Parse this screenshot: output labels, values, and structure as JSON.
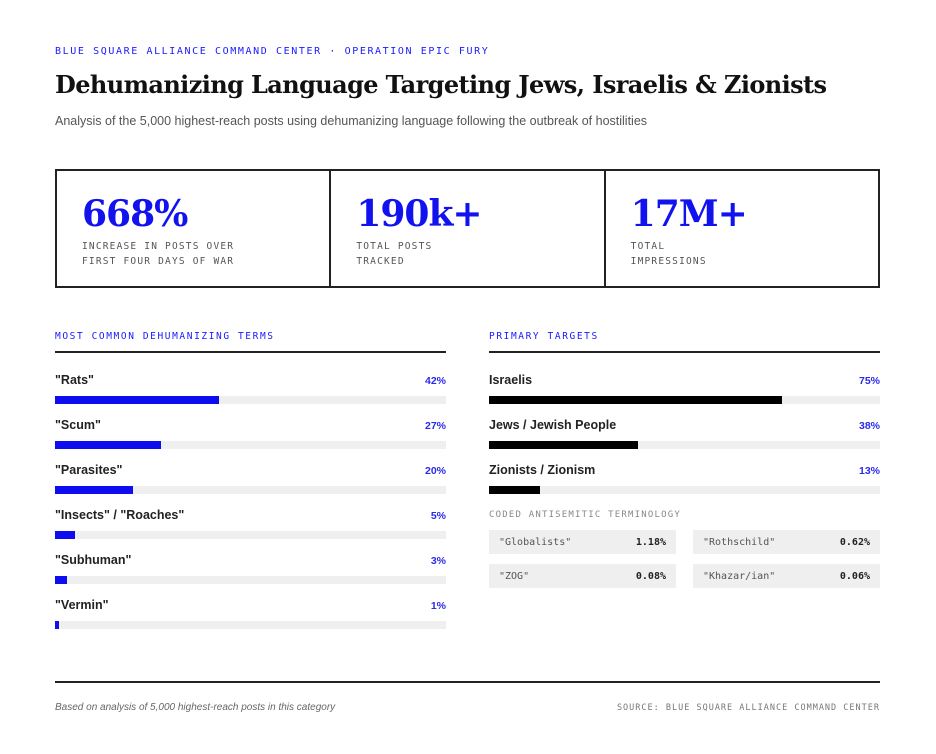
{
  "header": {
    "kicker": "BLUE SQUARE ALLIANCE COMMAND CENTER · OPERATION EPIC FURY",
    "title": "Dehumanizing Language Targeting Jews, Israelis & Zionists",
    "subtitle": "Analysis of the 5,000 highest-reach posts using dehumanizing language following the outbreak of hostilities"
  },
  "stats": [
    {
      "value": "668%",
      "label": "INCREASE IN POSTS OVER\nFIRST FOUR DAYS OF WAR"
    },
    {
      "value": "190k+",
      "label": "TOTAL POSTS\nTRACKED"
    },
    {
      "value": "17M+",
      "label": "TOTAL\nIMPRESSIONS"
    }
  ],
  "terms": {
    "section_label": "MOST COMMON DEHUMANIZING TERMS",
    "items": [
      {
        "label": "\"Rats\"",
        "pct": "42%",
        "value": 42
      },
      {
        "label": "\"Scum\"",
        "pct": "27%",
        "value": 27
      },
      {
        "label": "\"Parasites\"",
        "pct": "20%",
        "value": 20
      },
      {
        "label": "\"Insects\" / \"Roaches\"",
        "pct": "5%",
        "value": 5
      },
      {
        "label": "\"Subhuman\"",
        "pct": "3%",
        "value": 3
      },
      {
        "label": "\"Vermin\"",
        "pct": "1%",
        "value": 1
      }
    ]
  },
  "targets": {
    "section_label": "PRIMARY TARGETS",
    "items": [
      {
        "label": "Israelis",
        "pct": "75%",
        "value": 75
      },
      {
        "label": "Jews / Jewish People",
        "pct": "38%",
        "value": 38
      },
      {
        "label": "Zionists / Zionism",
        "pct": "13%",
        "value": 13
      }
    ]
  },
  "coded": {
    "section_label": "CODED ANTISEMITIC TERMINOLOGY",
    "items": [
      {
        "term": "\"Globalists\"",
        "value": "1.18%"
      },
      {
        "term": "\"Rothschild\"",
        "value": "0.62%"
      },
      {
        "term": "\"ZOG\"",
        "value": "0.08%"
      },
      {
        "term": "\"Khazar/ian\"",
        "value": "0.06%"
      }
    ]
  },
  "footer": {
    "note": "Based on analysis of 5,000 highest-reach posts in this category",
    "source": "SOURCE: BLUE SQUARE ALLIANCE COMMAND CENTER"
  },
  "colors": {
    "accent": "#1212ee",
    "bar_blue": "#0d0df0",
    "bar_dark": "#000000",
    "track": "#efefef",
    "rule": "#222222"
  },
  "chart_data": [
    {
      "type": "bar",
      "orientation": "horizontal",
      "title": "MOST COMMON DEHUMANIZING TERMS",
      "categories": [
        "\"Rats\"",
        "\"Scum\"",
        "\"Parasites\"",
        "\"Insects\" / \"Roaches\"",
        "\"Subhuman\"",
        "\"Vermin\""
      ],
      "values": [
        42,
        27,
        20,
        5,
        3,
        1
      ],
      "unit": "%",
      "xlim": [
        0,
        100
      ],
      "grid": false,
      "legend": "none"
    },
    {
      "type": "bar",
      "orientation": "horizontal",
      "title": "PRIMARY TARGETS",
      "categories": [
        "Israelis",
        "Jews / Jewish People",
        "Zionists / Zionism"
      ],
      "values": [
        75,
        38,
        13
      ],
      "unit": "%",
      "xlim": [
        0,
        100
      ],
      "grid": false,
      "legend": "none"
    },
    {
      "type": "table",
      "title": "CODED ANTISEMITIC TERMINOLOGY",
      "categories": [
        "\"Globalists\"",
        "\"Rothschild\"",
        "\"ZOG\"",
        "\"Khazar/ian\""
      ],
      "values": [
        1.18,
        0.62,
        0.08,
        0.06
      ],
      "unit": "%"
    }
  ]
}
